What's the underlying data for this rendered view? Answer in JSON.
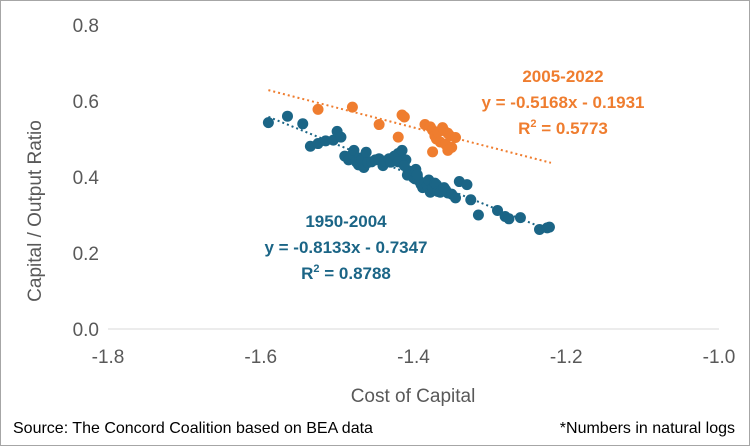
{
  "chart_data": {
    "type": "scatter",
    "xlabel": "Cost of Capital",
    "ylabel": "Capital / Output Ratio",
    "xlim": [
      -1.8,
      -1.0
    ],
    "ylim": [
      0.0,
      0.8
    ],
    "xticks": [
      "-1.8",
      "-1.6",
      "-1.4",
      "-1.2",
      "-1.0"
    ],
    "yticks": [
      "0.0",
      "0.2",
      "0.4",
      "0.6",
      "0.8"
    ],
    "grid": false,
    "colors": {
      "series_1950": "#1b6586",
      "series_2005": "#ef7d2f"
    },
    "series": [
      {
        "name": "1950-2004",
        "equation": "y = -0.8133x - 0.7347",
        "r2_label": "R",
        "r2_exp": "2",
        "r2_value": " = 0.8788",
        "trend": {
          "slope": -0.8133,
          "intercept": -0.7347,
          "x_range": [
            -1.59,
            -1.22
          ]
        },
        "points": [
          [
            -1.59,
            0.543
          ],
          [
            -1.565,
            0.56
          ],
          [
            -1.545,
            0.54
          ],
          [
            -1.535,
            0.481
          ],
          [
            -1.525,
            0.488
          ],
          [
            -1.515,
            0.495
          ],
          [
            -1.505,
            0.497
          ],
          [
            -1.5,
            0.52
          ],
          [
            -1.495,
            0.505
          ],
          [
            -1.49,
            0.455
          ],
          [
            -1.485,
            0.445
          ],
          [
            -1.48,
            0.46
          ],
          [
            -1.478,
            0.47
          ],
          [
            -1.475,
            0.44
          ],
          [
            -1.472,
            0.432
          ],
          [
            -1.47,
            0.45
          ],
          [
            -1.468,
            0.445
          ],
          [
            -1.465,
            0.425
          ],
          [
            -1.462,
            0.465
          ],
          [
            -1.46,
            0.438
          ],
          [
            -1.455,
            0.44
          ],
          [
            -1.45,
            0.445
          ],
          [
            -1.445,
            0.448
          ],
          [
            -1.44,
            0.43
          ],
          [
            -1.438,
            0.442
          ],
          [
            -1.432,
            0.448
          ],
          [
            -1.43,
            0.439
          ],
          [
            -1.425,
            0.455
          ],
          [
            -1.42,
            0.462
          ],
          [
            -1.415,
            0.47
          ],
          [
            -1.41,
            0.445
          ],
          [
            -1.408,
            0.405
          ],
          [
            -1.405,
            0.415
          ],
          [
            -1.4,
            0.398
          ],
          [
            -1.398,
            0.395
          ],
          [
            -1.397,
            0.42
          ],
          [
            -1.395,
            0.4
          ],
          [
            -1.392,
            0.388
          ],
          [
            -1.39,
            0.38
          ],
          [
            -1.388,
            0.372
          ],
          [
            -1.385,
            0.385
          ],
          [
            -1.382,
            0.378
          ],
          [
            -1.38,
            0.392
          ],
          [
            -1.378,
            0.36
          ],
          [
            -1.375,
            0.37
          ],
          [
            -1.372,
            0.384
          ],
          [
            -1.37,
            0.38
          ],
          [
            -1.368,
            0.362
          ],
          [
            -1.365,
            0.36
          ],
          [
            -1.36,
            0.372
          ],
          [
            -1.358,
            0.366
          ],
          [
            -1.355,
            0.358
          ],
          [
            -1.35,
            0.355
          ],
          [
            -1.345,
            0.345
          ],
          [
            -1.34,
            0.388
          ],
          [
            -1.33,
            0.38
          ],
          [
            -1.325,
            0.34
          ],
          [
            -1.315,
            0.3
          ],
          [
            -1.29,
            0.312
          ],
          [
            -1.28,
            0.296
          ],
          [
            -1.275,
            0.29
          ],
          [
            -1.26,
            0.293
          ],
          [
            -1.235,
            0.262
          ],
          [
            -1.225,
            0.266
          ],
          [
            -1.222,
            0.268
          ],
          [
            -1.42,
            0.44
          ],
          [
            -1.412,
            0.43
          ],
          [
            -1.395,
            0.406
          ]
        ]
      },
      {
        "name": "2005-2022",
        "equation": "y = -0.5168x - 0.1931",
        "r2_label": "R",
        "r2_exp": "2",
        "r2_value": " = 0.5773",
        "trend": {
          "slope": -0.5168,
          "intercept": -0.1931,
          "x_range": [
            -1.59,
            -1.22
          ]
        },
        "points": [
          [
            -1.525,
            0.578
          ],
          [
            -1.48,
            0.584
          ],
          [
            -1.445,
            0.538
          ],
          [
            -1.415,
            0.563
          ],
          [
            -1.412,
            0.558
          ],
          [
            -1.42,
            0.505
          ],
          [
            -1.385,
            0.538
          ],
          [
            -1.378,
            0.532
          ],
          [
            -1.375,
            0.523
          ],
          [
            -1.372,
            0.508
          ],
          [
            -1.37,
            0.5
          ],
          [
            -1.368,
            0.518
          ],
          [
            -1.365,
            0.492
          ],
          [
            -1.362,
            0.53
          ],
          [
            -1.36,
            0.522
          ],
          [
            -1.358,
            0.486
          ],
          [
            -1.355,
            0.515
          ],
          [
            -1.352,
            0.508
          ],
          [
            -1.35,
            0.478
          ],
          [
            -1.345,
            0.504
          ],
          [
            -1.375,
            0.466
          ],
          [
            -1.355,
            0.47
          ]
        ]
      }
    ]
  },
  "footer": {
    "source": "Source: The Concord Coalition based on BEA data",
    "note": "*Numbers in natural logs"
  }
}
